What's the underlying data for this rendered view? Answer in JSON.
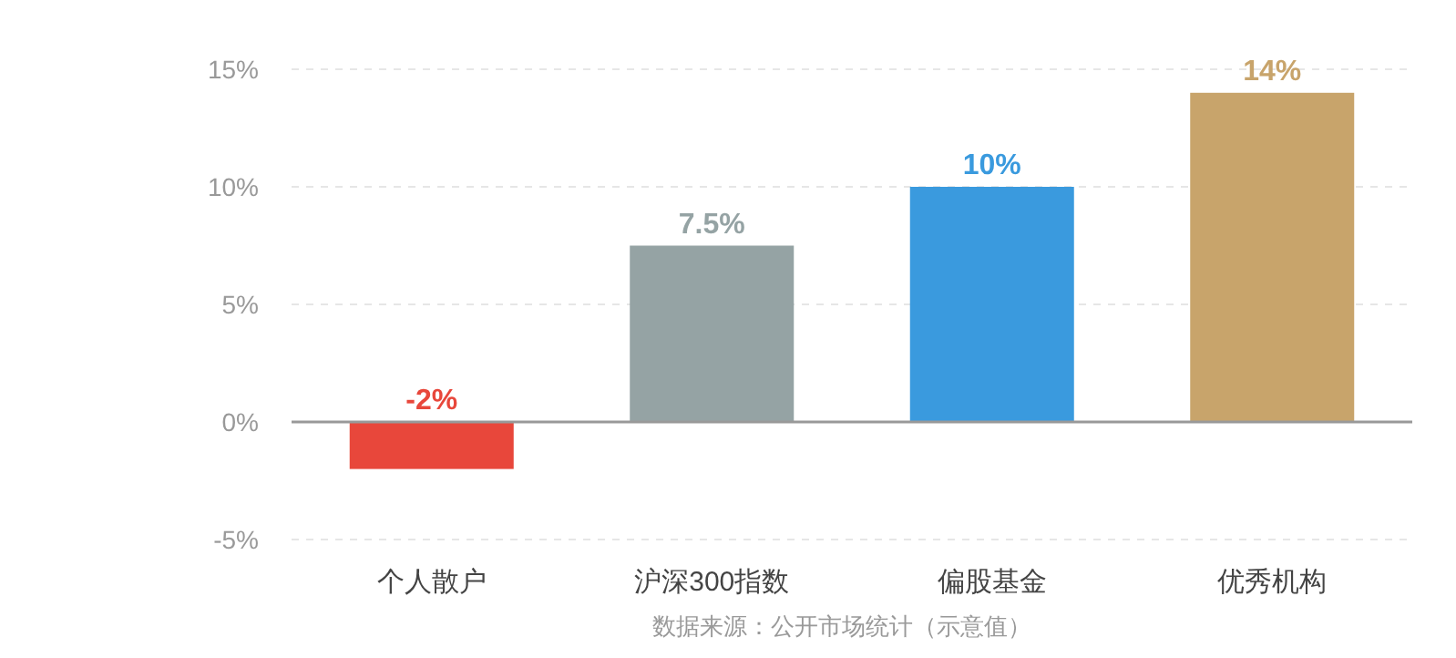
{
  "chart_data": {
    "type": "bar",
    "categories": [
      "个人散户",
      "沪深300指数",
      "偏股基金",
      "优秀机构"
    ],
    "values": [
      -2,
      7.5,
      10,
      14
    ],
    "colors": [
      "#e8473b",
      "#95a3a4",
      "#3a9ade",
      "#c8a46b"
    ],
    "value_labels": [
      "-2%",
      "7.5%",
      "10%",
      "14%"
    ],
    "ylim": [
      -5,
      15
    ],
    "yticks": [
      {
        "value": -5,
        "label": "-5%"
      },
      {
        "value": 0,
        "label": "0%"
      },
      {
        "value": 5,
        "label": "5%"
      },
      {
        "value": 10,
        "label": "10%"
      },
      {
        "value": 15,
        "label": "15%"
      }
    ],
    "grid": "y",
    "annotations": [
      "数据来源：公开市场统计（示意值）"
    ]
  }
}
